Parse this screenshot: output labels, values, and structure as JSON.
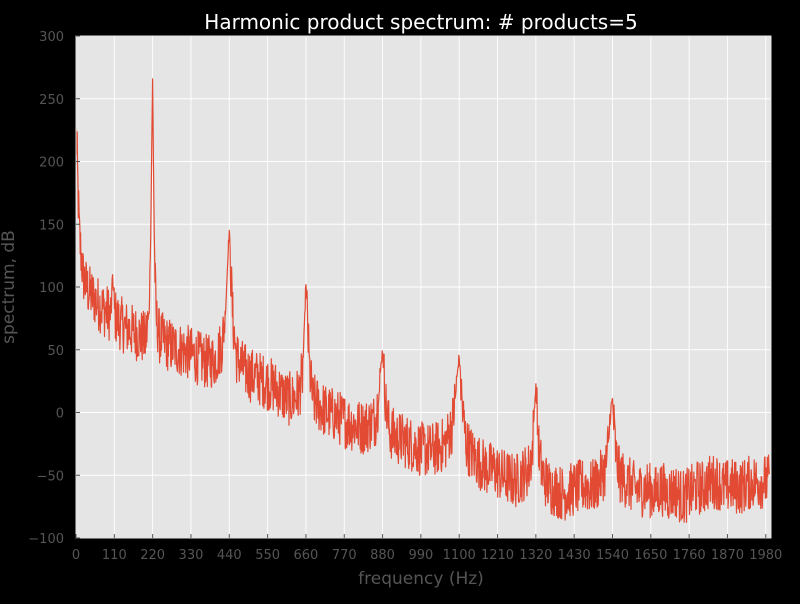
{
  "chart_data": {
    "type": "line",
    "title": "Harmonic product spectrum: # products=5",
    "xlabel": "frequency (Hz)",
    "ylabel": "spectrum, dB",
    "xlim": [
      0,
      1995
    ],
    "ylim": [
      -100,
      300
    ],
    "x_ticks": [
      0,
      110,
      220,
      330,
      440,
      550,
      660,
      770,
      880,
      990,
      1100,
      1210,
      1320,
      1430,
      1540,
      1650,
      1760,
      1870,
      1980
    ],
    "y_ticks": [
      -100,
      -50,
      0,
      50,
      100,
      150,
      200,
      250,
      300
    ],
    "x_tick_labels": [
      "0",
      "110",
      "220",
      "330",
      "440",
      "550",
      "660",
      "770",
      "880",
      "990",
      "1100",
      "1210",
      "1320",
      "1430",
      "1540",
      "1650",
      "1760",
      "1870",
      "1980"
    ],
    "y_tick_labels": [
      "−100",
      "−50",
      "0",
      "50",
      "100",
      "150",
      "200",
      "250",
      "300"
    ],
    "grid": true,
    "colors": {
      "background": "#000000",
      "plot_background": "#e5e5e5",
      "grid": "#ffffff",
      "line": "#e24a33",
      "title": "#ffffff",
      "label": "#555555",
      "tick_label": "#555555"
    },
    "series": [
      {
        "x": [
          0,
          3,
          6,
          10,
          15,
          20,
          30,
          40,
          50,
          60,
          70,
          80,
          90,
          100,
          105,
          110,
          115,
          125,
          140,
          160,
          180,
          200,
          210,
          215,
          218,
          220,
          222,
          225,
          230,
          240,
          260,
          280,
          300,
          320,
          340,
          360,
          380,
          400,
          420,
          430,
          436,
          440,
          444,
          450,
          460,
          480,
          500,
          520,
          540,
          560,
          580,
          600,
          620,
          640,
          650,
          656,
          660,
          664,
          670,
          680,
          700,
          720,
          740,
          760,
          780,
          800,
          820,
          840,
          860,
          870,
          876,
          880,
          884,
          890,
          900,
          920,
          940,
          960,
          980,
          1000,
          1020,
          1040,
          1060,
          1080,
          1090,
          1096,
          1100,
          1104,
          1110,
          1120,
          1140,
          1160,
          1180,
          1200,
          1220,
          1240,
          1260,
          1280,
          1300,
          1310,
          1316,
          1320,
          1324,
          1330,
          1340,
          1360,
          1380,
          1400,
          1420,
          1440,
          1460,
          1480,
          1500,
          1520,
          1530,
          1536,
          1540,
          1544,
          1550,
          1560,
          1580,
          1600,
          1620,
          1640,
          1660,
          1680,
          1700,
          1720,
          1740,
          1760,
          1780,
          1800,
          1820,
          1840,
          1860,
          1880,
          1900,
          1920,
          1940,
          1960,
          1980,
          1990
        ],
        "y": [
          220,
          205,
          175,
          140,
          125,
          110,
          100,
          95,
          92,
          88,
          85,
          82,
          80,
          78,
          110,
          80,
          75,
          72,
          68,
          65,
          62,
          58,
          80,
          150,
          230,
          265,
          210,
          130,
          75,
          60,
          55,
          52,
          50,
          48,
          45,
          42,
          40,
          42,
          55,
          85,
          125,
          145,
          115,
          75,
          45,
          35,
          30,
          28,
          25,
          22,
          18,
          12,
          10,
          15,
          30,
          70,
          105,
          75,
          35,
          10,
          5,
          0,
          -2,
          -5,
          -8,
          -10,
          -12,
          -10,
          -5,
          15,
          40,
          50,
          30,
          5,
          -15,
          -20,
          -22,
          -25,
          -28,
          -30,
          -30,
          -28,
          -25,
          -10,
          15,
          35,
          45,
          25,
          0,
          -25,
          -35,
          -40,
          -45,
          -45,
          -50,
          -52,
          -55,
          -50,
          -45,
          -30,
          5,
          20,
          -5,
          -35,
          -50,
          -60,
          -62,
          -65,
          -62,
          -60,
          -58,
          -60,
          -55,
          -45,
          -20,
          5,
          10,
          -10,
          -35,
          -50,
          -55,
          -60,
          -62,
          -60,
          -65,
          -60,
          -65,
          -62,
          -68,
          -65,
          -60,
          -60,
          -55,
          -55,
          -60,
          -58,
          -60,
          -58,
          -55,
          -55,
          -55,
          -55
        ]
      }
    ]
  }
}
